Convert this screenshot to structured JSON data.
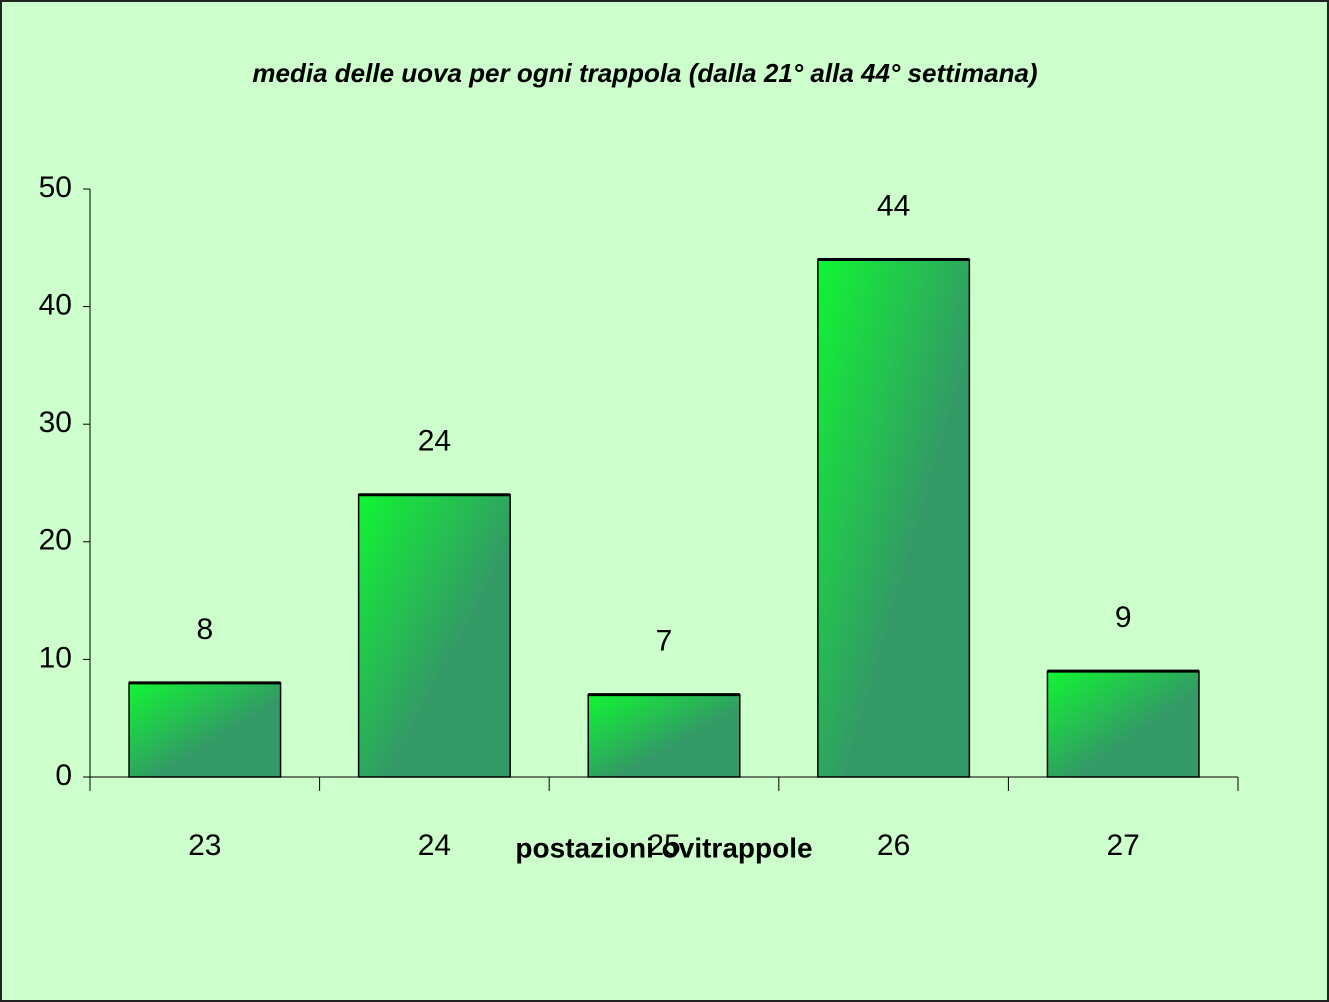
{
  "chart_data": {
    "type": "bar",
    "title": "media delle uova per ogni trappola (dalla 21° alla 44° settimana)",
    "x_label": "postazioni ovitrappole",
    "categories": [
      "23",
      "24",
      "25",
      "26",
      "27"
    ],
    "values": [
      8,
      24,
      7,
      44,
      9
    ],
    "color": [
      "#11f533",
      "#339966"
    ],
    "ylim": [
      0,
      50
    ],
    "yticks": [
      0,
      10,
      20,
      30,
      40,
      50
    ],
    "grid": false
  }
}
